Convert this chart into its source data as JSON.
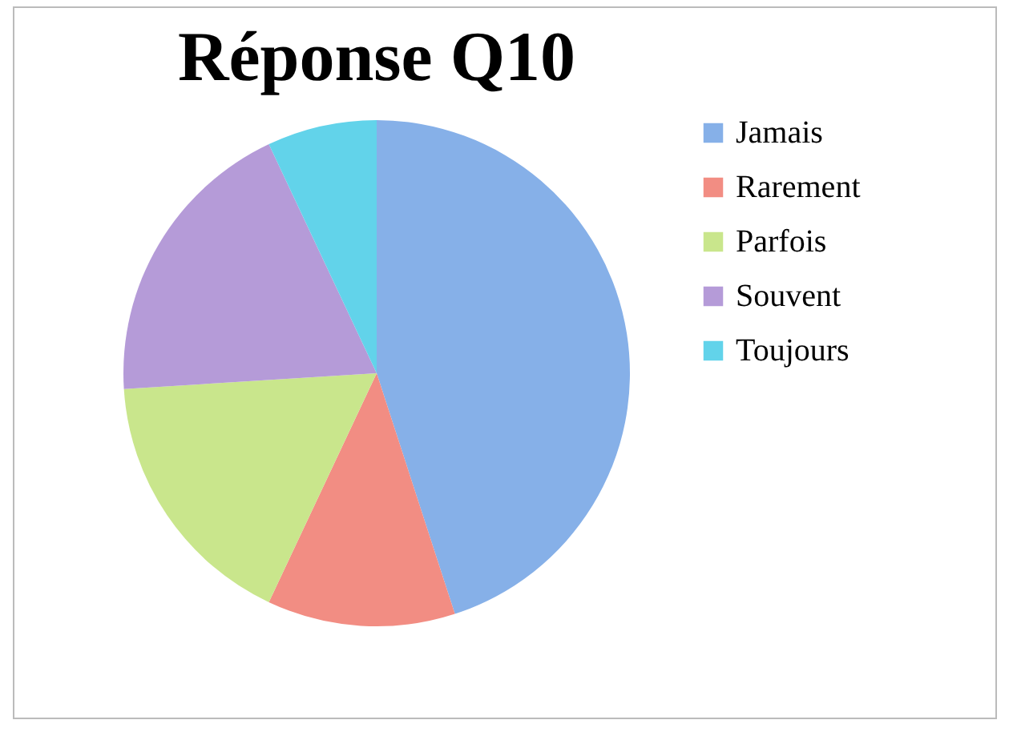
{
  "chart_data": {
    "type": "pie",
    "title": "Réponse Q10",
    "categories": [
      "Jamais",
      "Rarement",
      "Parfois",
      "Souvent",
      "Toujours"
    ],
    "values": [
      45,
      12,
      17,
      19,
      7
    ],
    "colors": [
      "#86b0e8",
      "#f28d83",
      "#c9e68c",
      "#b59bd8",
      "#62d3ea"
    ],
    "legend": "right"
  }
}
